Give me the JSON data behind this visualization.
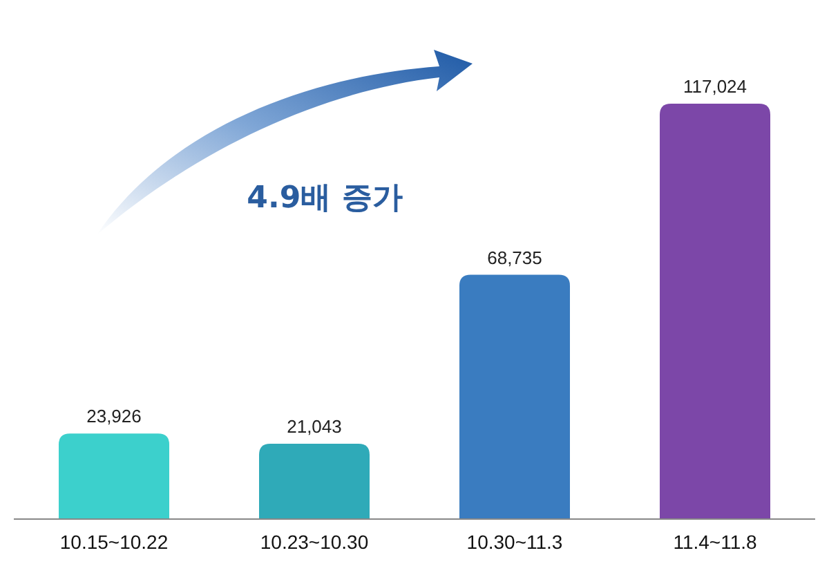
{
  "chart_data": {
    "type": "bar",
    "categories": [
      "10.15~10.22",
      "10.23~10.30",
      "10.30~11.3",
      "11.4~11.8"
    ],
    "values": [
      23926,
      21043,
      68735,
      117024
    ],
    "colors": [
      "#3cd0cc",
      "#2faab8",
      "#3a7cc0",
      "#7c47a8"
    ],
    "data_labels": true,
    "value_labels": [
      "23,926",
      "21,043",
      "68,735",
      "117,024"
    ],
    "annotations": [
      "4.9배 증가"
    ]
  }
}
